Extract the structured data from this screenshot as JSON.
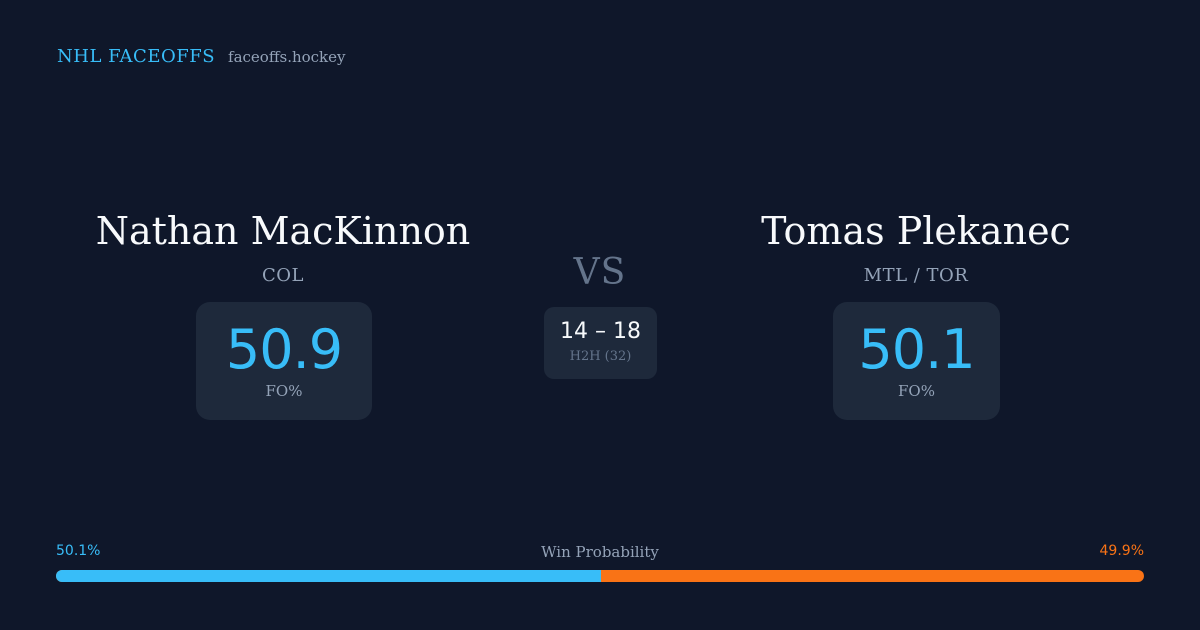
{
  "brand": {
    "name": "NHL FACEOFFS",
    "domain": "faceoffs.hockey"
  },
  "player_left": {
    "name": "Nathan MacKinnon",
    "team": "COL",
    "fo_value": "50.9",
    "fo_label": "FO%"
  },
  "player_right": {
    "name": "Tomas Plekanec",
    "team": "MTL / TOR",
    "fo_value": "50.1",
    "fo_label": "FO%"
  },
  "versus": {
    "label": "VS",
    "h2h_score": "14 – 18",
    "h2h_label": "H2H (32)"
  },
  "win_probability": {
    "title": "Win Probability",
    "left_label": "50.1%",
    "right_label": "49.9%",
    "left_fraction": 0.501,
    "left_color": "#38bdf8",
    "right_color": "#f97316"
  }
}
